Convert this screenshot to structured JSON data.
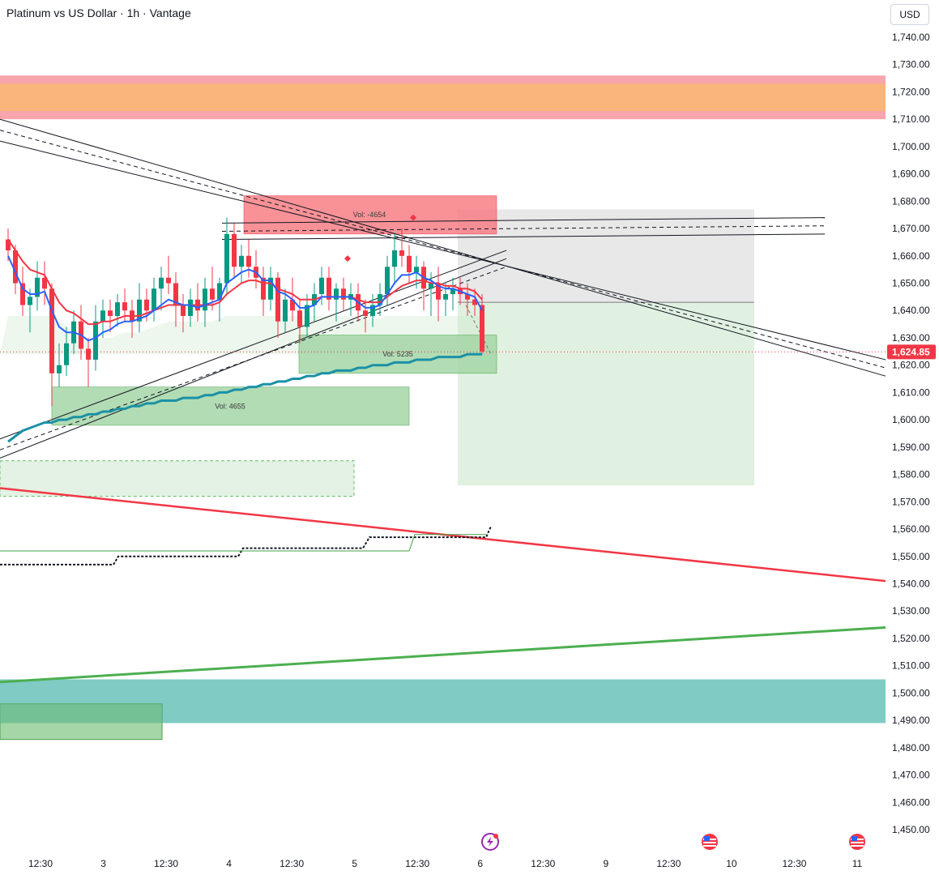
{
  "header": {
    "title": "Platinum vs US Dollar · 1h · Vantage",
    "currency": "USD"
  },
  "chart_data": {
    "type": "candlestick",
    "symbol": "Platinum vs US Dollar",
    "interval": "1h",
    "broker": "Vantage",
    "currency": "USD",
    "y_axis": {
      "min": 1445,
      "max": 1745,
      "tick_values": [
        1740,
        1730,
        1720,
        1710,
        1700,
        1690,
        1680,
        1670,
        1660,
        1650,
        1640,
        1630,
        1620,
        1610,
        1600,
        1590,
        1580,
        1570,
        1560,
        1550,
        1540,
        1530,
        1520,
        1510,
        1500,
        1490,
        1480,
        1470,
        1460,
        1450
      ],
      "tick_labels": [
        "1,740.00",
        "1,730.00",
        "1,720.00",
        "1,710.00",
        "1,700.00",
        "1,690.00",
        "1,680.00",
        "1,670.00",
        "1,660.00",
        "1,650.00",
        "1,640.00",
        "1,630.00",
        "1,620.00",
        "1,610.00",
        "1,600.00",
        "1,590.00",
        "1,580.00",
        "1,570.00",
        "1,560.00",
        "1,550.00",
        "1,540.00",
        "1,530.00",
        "1,520.00",
        "1,510.00",
        "1,500.00",
        "1,490.00",
        "1,480.00",
        "1,470.00",
        "1,460.00",
        "1,450.00"
      ]
    },
    "x_axis": {
      "labels": [
        {
          "label": "12:30",
          "bar": 3
        },
        {
          "label": "3",
          "bar": 12
        },
        {
          "label": "12:30",
          "bar": 21
        },
        {
          "label": "4",
          "bar": 30
        },
        {
          "label": "12:30",
          "bar": 39
        },
        {
          "label": "5",
          "bar": 48
        },
        {
          "label": "12:30",
          "bar": 57
        },
        {
          "label": "6",
          "bar": 66
        },
        {
          "label": "12:30",
          "bar": 75
        },
        {
          "label": "9",
          "bar": 84
        },
        {
          "label": "12:30",
          "bar": 93
        },
        {
          "label": "10",
          "bar": 102
        },
        {
          "label": "12:30",
          "bar": 111
        },
        {
          "label": "11",
          "bar": 120
        }
      ]
    },
    "last_price": "1,624.85",
    "last_price_value": 1624.85,
    "colors": {
      "up": "#089981",
      "down": "#f23645",
      "ema_fast": "#2962ff",
      "ema_slow": "#f23645",
      "ema_long": "#1b91a6",
      "resistance_zone": "#f8a5ad",
      "resistance_zone_inner": "#f9b57a",
      "demand_zone": "#a5d6a7",
      "support_zone": "#80cbc4",
      "trend_down": "#f23645",
      "trend_up": "#4caf50"
    },
    "candles": [
      [
        1666,
        1670,
        1658,
        1662
      ],
      [
        1662,
        1664,
        1646,
        1650
      ],
      [
        1650,
        1656,
        1638,
        1642
      ],
      [
        1642,
        1648,
        1632,
        1645
      ],
      [
        1645,
        1658,
        1640,
        1652
      ],
      [
        1652,
        1658,
        1642,
        1648
      ],
      [
        1648,
        1650,
        1605,
        1617
      ],
      [
        1617,
        1628,
        1612,
        1620
      ],
      [
        1620,
        1634,
        1616,
        1628
      ],
      [
        1628,
        1640,
        1624,
        1636
      ],
      [
        1636,
        1642,
        1622,
        1626
      ],
      [
        1626,
        1630,
        1612,
        1622
      ],
      [
        1622,
        1642,
        1618,
        1636
      ],
      [
        1636,
        1644,
        1630,
        1640
      ],
      [
        1640,
        1644,
        1632,
        1638
      ],
      [
        1638,
        1646,
        1634,
        1643
      ],
      [
        1643,
        1648,
        1636,
        1640
      ],
      [
        1640,
        1644,
        1630,
        1636
      ],
      [
        1636,
        1650,
        1632,
        1644
      ],
      [
        1644,
        1648,
        1636,
        1640
      ],
      [
        1640,
        1652,
        1636,
        1648
      ],
      [
        1648,
        1656,
        1640,
        1652
      ],
      [
        1652,
        1660,
        1646,
        1650
      ],
      [
        1650,
        1654,
        1634,
        1642
      ],
      [
        1642,
        1646,
        1632,
        1638
      ],
      [
        1638,
        1648,
        1634,
        1644
      ],
      [
        1644,
        1650,
        1636,
        1640
      ],
      [
        1640,
        1652,
        1634,
        1648
      ],
      [
        1648,
        1656,
        1640,
        1644
      ],
      [
        1644,
        1652,
        1636,
        1650
      ],
      [
        1650,
        1674,
        1646,
        1668
      ],
      [
        1668,
        1672,
        1652,
        1656
      ],
      [
        1656,
        1664,
        1650,
        1660
      ],
      [
        1660,
        1666,
        1652,
        1656
      ],
      [
        1656,
        1662,
        1648,
        1652
      ],
      [
        1652,
        1656,
        1638,
        1644
      ],
      [
        1644,
        1656,
        1640,
        1652
      ],
      [
        1652,
        1654,
        1630,
        1636
      ],
      [
        1636,
        1648,
        1632,
        1644
      ],
      [
        1644,
        1652,
        1636,
        1640
      ],
      [
        1640,
        1644,
        1628,
        1634
      ],
      [
        1634,
        1646,
        1630,
        1642
      ],
      [
        1642,
        1650,
        1636,
        1646
      ],
      [
        1646,
        1656,
        1642,
        1652
      ],
      [
        1652,
        1656,
        1640,
        1644
      ],
      [
        1644,
        1650,
        1636,
        1648
      ],
      [
        1648,
        1652,
        1640,
        1644
      ],
      [
        1644,
        1650,
        1638,
        1646
      ],
      [
        1646,
        1650,
        1636,
        1640
      ],
      [
        1640,
        1644,
        1632,
        1638
      ],
      [
        1638,
        1646,
        1634,
        1642
      ],
      [
        1642,
        1650,
        1638,
        1646
      ],
      [
        1646,
        1660,
        1642,
        1656
      ],
      [
        1656,
        1668,
        1650,
        1662
      ],
      [
        1662,
        1670,
        1656,
        1660
      ],
      [
        1660,
        1664,
        1650,
        1654
      ],
      [
        1654,
        1660,
        1648,
        1656
      ],
      [
        1656,
        1658,
        1640,
        1648
      ],
      [
        1648,
        1654,
        1638,
        1650
      ],
      [
        1650,
        1656,
        1636,
        1644
      ],
      [
        1644,
        1650,
        1638,
        1646
      ],
      [
        1646,
        1652,
        1640,
        1648
      ],
      [
        1648,
        1652,
        1642,
        1646
      ],
      [
        1646,
        1650,
        1638,
        1644
      ],
      [
        1644,
        1648,
        1638,
        1642
      ],
      [
        1642,
        1646,
        1624,
        1625
      ]
    ],
    "ema_fast": [
      1660,
      1654,
      1648,
      1646,
      1646,
      1647,
      1640,
      1634,
      1632,
      1632,
      1631,
      1629,
      1630,
      1632,
      1633,
      1635,
      1636,
      1636,
      1637,
      1638,
      1640,
      1642,
      1644,
      1643,
      1642,
      1642,
      1641,
      1642,
      1643,
      1644,
      1650,
      1652,
      1654,
      1655,
      1654,
      1651,
      1651,
      1647,
      1646,
      1644,
      1641,
      1641,
      1642,
      1645,
      1645,
      1645,
      1645,
      1645,
      1643,
      1641,
      1641,
      1642,
      1646,
      1650,
      1653,
      1653,
      1654,
      1652,
      1651,
      1649,
      1648,
      1648,
      1647,
      1646,
      1645,
      1640
    ],
    "ema_slow": [
      1666,
      1662,
      1658,
      1655,
      1654,
      1653,
      1648,
      1643,
      1640,
      1639,
      1637,
      1635,
      1635,
      1636,
      1636,
      1637,
      1638,
      1638,
      1638,
      1639,
      1640,
      1641,
      1642,
      1642,
      1642,
      1642,
      1642,
      1642,
      1642,
      1643,
      1646,
      1648,
      1650,
      1651,
      1651,
      1650,
      1650,
      1648,
      1647,
      1646,
      1644,
      1644,
      1644,
      1645,
      1645,
      1645,
      1645,
      1645,
      1644,
      1643,
      1643,
      1643,
      1645,
      1647,
      1649,
      1650,
      1651,
      1651,
      1650,
      1650,
      1649,
      1649,
      1648,
      1648,
      1647,
      1644
    ],
    "ema_long": [
      1592,
      1594,
      1596,
      1597,
      1598,
      1599,
      1599,
      1600,
      1600,
      1601,
      1601,
      1602,
      1602,
      1603,
      1603,
      1604,
      1604,
      1605,
      1605,
      1606,
      1606,
      1607,
      1607,
      1607,
      1608,
      1608,
      1608,
      1609,
      1609,
      1610,
      1610,
      1611,
      1611,
      1612,
      1612,
      1613,
      1613,
      1614,
      1614,
      1615,
      1615,
      1616,
      1616,
      1617,
      1617,
      1618,
      1618,
      1618,
      1619,
      1619,
      1620,
      1620,
      1620,
      1621,
      1621,
      1621,
      1622,
      1622,
      1622,
      1623,
      1623,
      1623,
      1623,
      1624,
      1624,
      1624
    ],
    "zones": [
      {
        "name": "vol-4654",
        "label": "Vol: -4654",
        "type": "supply"
      },
      {
        "name": "vol-5235",
        "label": "Vol: 5235",
        "type": "demand"
      },
      {
        "name": "vol-4655",
        "label": "Vol: 4655",
        "type": "demand"
      }
    ]
  }
}
